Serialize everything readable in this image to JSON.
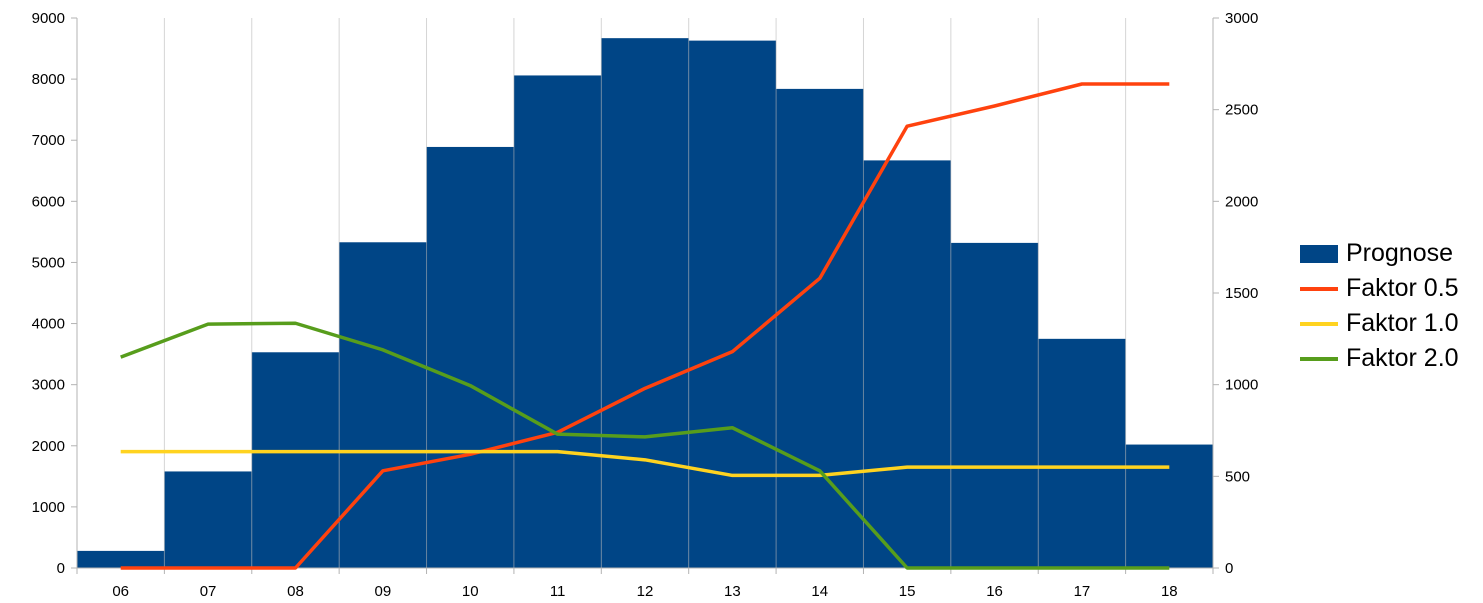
{
  "chart_data": {
    "type": "bar",
    "categories": [
      "06",
      "07",
      "08",
      "09",
      "10",
      "11",
      "12",
      "13",
      "14",
      "15",
      "16",
      "17",
      "18"
    ],
    "y_left": {
      "min": 0,
      "max": 9000,
      "step": 1000,
      "ticks": [
        "0",
        "1000",
        "2000",
        "3000",
        "4000",
        "5000",
        "6000",
        "7000",
        "8000",
        "9000"
      ]
    },
    "y_right": {
      "min": 0,
      "max": 3000,
      "step": 500,
      "ticks": [
        "0",
        "500",
        "1000",
        "1500",
        "2000",
        "2500",
        "3000"
      ]
    },
    "grid": false,
    "legend_position": "right",
    "series": [
      {
        "name": "Prognose",
        "type": "bar",
        "axis": "left",
        "color": "#004586",
        "values": [
          280,
          1580,
          3530,
          5330,
          6890,
          8060,
          8670,
          8630,
          7840,
          6670,
          5320,
          3750,
          2020
        ]
      },
      {
        "name": "Faktor 0.5",
        "type": "line",
        "axis": "right",
        "color": "#ff420e",
        "values": [
          0,
          0,
          0,
          530,
          620,
          740,
          980,
          1180,
          1580,
          2410,
          2520,
          2640,
          2640
        ]
      },
      {
        "name": "Faktor 1.0",
        "type": "line",
        "axis": "right",
        "color": "#ffd320",
        "values": [
          635,
          635,
          635,
          635,
          635,
          635,
          590,
          505,
          505,
          550,
          550,
          550,
          550
        ]
      },
      {
        "name": "Faktor 2.0",
        "type": "line",
        "axis": "right",
        "color": "#579d1c",
        "values": [
          1150,
          1330,
          1335,
          1190,
          995,
          730,
          715,
          765,
          530,
          0,
          0,
          0,
          0
        ]
      }
    ]
  }
}
